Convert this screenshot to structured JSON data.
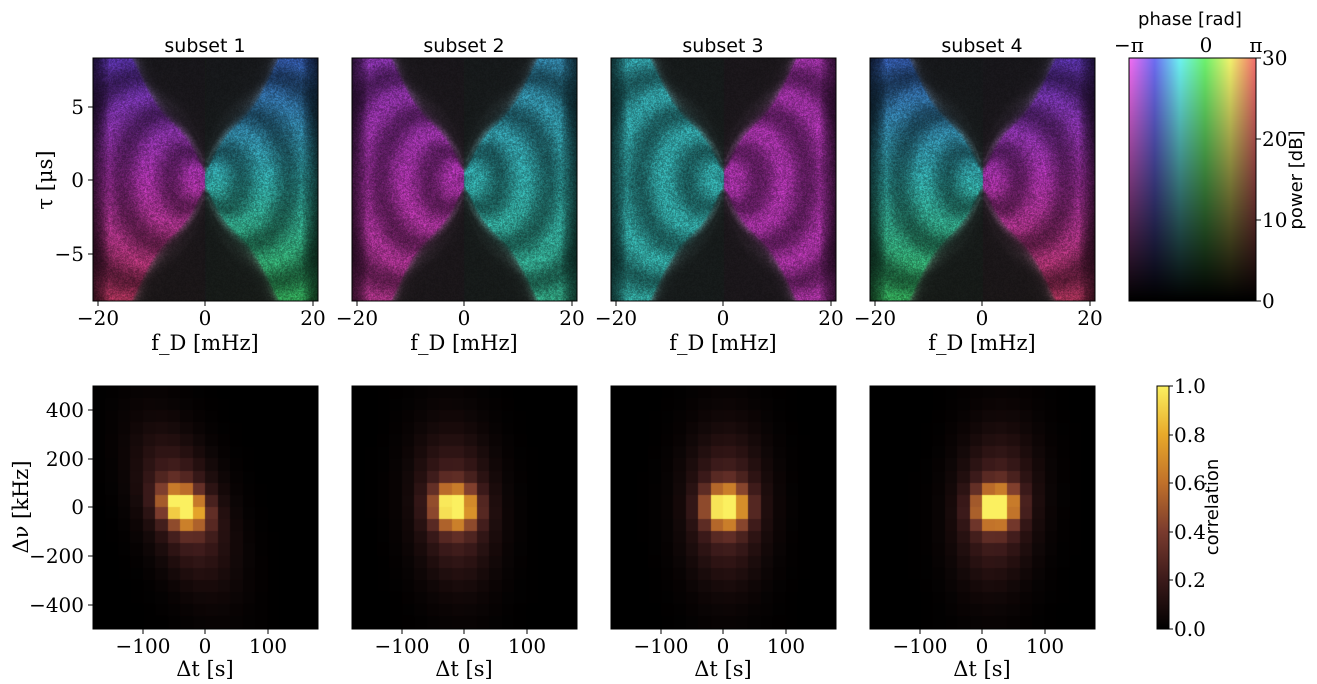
{
  "chart_data": [
    {
      "type": "heatmap",
      "title": "subset 1",
      "xlabel": "f_D [mHz]",
      "ylabel": "τ [μs]",
      "xlim": [
        -21,
        21
      ],
      "ylim": [
        -8.2,
        8.2
      ],
      "xticks": [
        "−20",
        "0",
        "20"
      ],
      "yticks": [
        "5",
        "0",
        "−5"
      ],
      "phase_direction": -1,
      "description_values": {
        "peak_at": [
          0,
          0
        ]
      }
    },
    {
      "type": "heatmap",
      "title": "subset 2",
      "xlabel": "f_D [mHz]",
      "xlim": [
        -21,
        21
      ],
      "ylim": [
        -8.2,
        8.2
      ],
      "xticks": [
        "−20",
        "0",
        "20"
      ],
      "phase_direction": -0.45,
      "description_values": {
        "peak_at": [
          0,
          0
        ]
      }
    },
    {
      "type": "heatmap",
      "title": "subset 3",
      "xlabel": "f_D [mHz]",
      "xlim": [
        -21,
        21
      ],
      "ylim": [
        -8.2,
        8.2
      ],
      "xticks": [
        "−20",
        "0",
        "20"
      ],
      "phase_direction": 0.1,
      "description_values": {
        "peak_at": [
          0,
          0
        ]
      }
    },
    {
      "type": "heatmap",
      "title": "subset 4",
      "xlabel": "f_D [mHz]",
      "xlim": [
        -21,
        21
      ],
      "ylim": [
        -8.2,
        8.2
      ],
      "xticks": [
        "−20",
        "0",
        "20"
      ],
      "phase_direction": 1,
      "description_values": {
        "peak_at": [
          0,
          0
        ]
      }
    },
    {
      "type": "heatmap",
      "xlabel": "Δt [s]",
      "ylabel": "Δν [kHz]",
      "xlim": [
        -180,
        180
      ],
      "ylim": [
        -500,
        500
      ],
      "xticks": [
        "−100",
        "0",
        "100"
      ],
      "yticks": [
        "400",
        "200",
        "0",
        "−200",
        "−400"
      ],
      "peak": {
        "dt": -35,
        "dnu": 0,
        "value": 0.95
      },
      "tilt": -0.11
    },
    {
      "type": "heatmap",
      "xlabel": "Δt [s]",
      "xlim": [
        -180,
        180
      ],
      "ylim": [
        -500,
        500
      ],
      "xticks": [
        "−100",
        "0",
        "100"
      ],
      "peak": {
        "dt": -15,
        "dnu": 0,
        "value": 0.95
      },
      "tilt": -0.02
    },
    {
      "type": "heatmap",
      "xlabel": "Δt [s]",
      "xlim": [
        -180,
        180
      ],
      "ylim": [
        -500,
        500
      ],
      "xticks": [
        "−100",
        "0",
        "100"
      ],
      "peak": {
        "dt": 5,
        "dnu": 0,
        "value": 0.95
      },
      "tilt": 0.0
    },
    {
      "type": "heatmap",
      "xlabel": "Δt [s]",
      "xlim": [
        -180,
        180
      ],
      "ylim": [
        -500,
        500
      ],
      "xticks": [
        "−100",
        "0",
        "100"
      ],
      "peak": {
        "dt": 22,
        "dnu": 0,
        "value": 0.95
      },
      "tilt": 0.02
    }
  ],
  "colorbars": {
    "phase_power": {
      "title": "phase [rad]",
      "top_ticks": [
        "−π",
        "0",
        "π"
      ],
      "ylabel": "power [dB]",
      "range": [
        0,
        30
      ],
      "ticks": [
        "30",
        "20",
        "10",
        "0"
      ]
    },
    "correlation": {
      "ylabel": "correlation",
      "range": [
        0.0,
        1.0
      ],
      "ticks": [
        "1.0",
        "0.8",
        "0.6",
        "0.4",
        "0.2",
        "0.0"
      ]
    }
  }
}
